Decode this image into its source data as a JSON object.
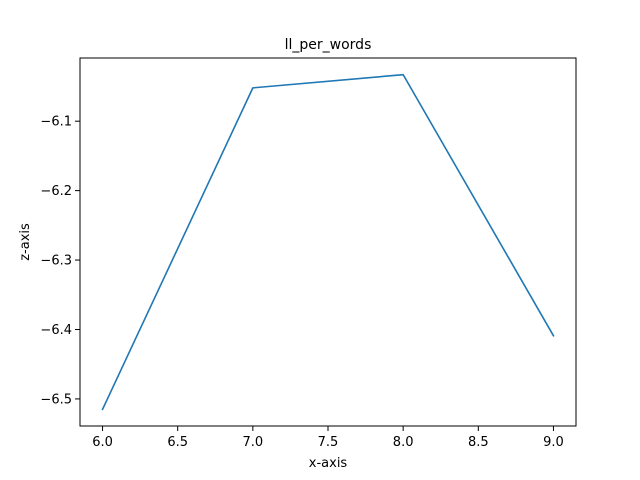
{
  "chart_data": {
    "type": "line",
    "title": "ll_per_words",
    "xlabel": "x-axis",
    "ylabel": "z-axis",
    "xlim": [
      5.85,
      9.15
    ],
    "ylim": [
      -6.539,
      -6.009
    ],
    "x_ticks": [
      6.0,
      6.5,
      7.0,
      7.5,
      8.0,
      8.5,
      9.0
    ],
    "x_tick_labels": [
      "6.0",
      "6.5",
      "7.0",
      "7.5",
      "8.0",
      "8.5",
      "9.0"
    ],
    "y_ticks": [
      -6.5,
      -6.4,
      -6.3,
      -6.2,
      -6.1
    ],
    "y_tick_labels": [
      "−6.5",
      "−6.4",
      "−6.3",
      "−6.2",
      "−6.1"
    ],
    "grid": false,
    "legend": "none",
    "series": [
      {
        "color": "#1f77b4",
        "x": [
          6,
          7,
          8,
          9
        ],
        "y": [
          -6.515,
          -6.052,
          -6.033,
          -6.409
        ]
      }
    ]
  }
}
